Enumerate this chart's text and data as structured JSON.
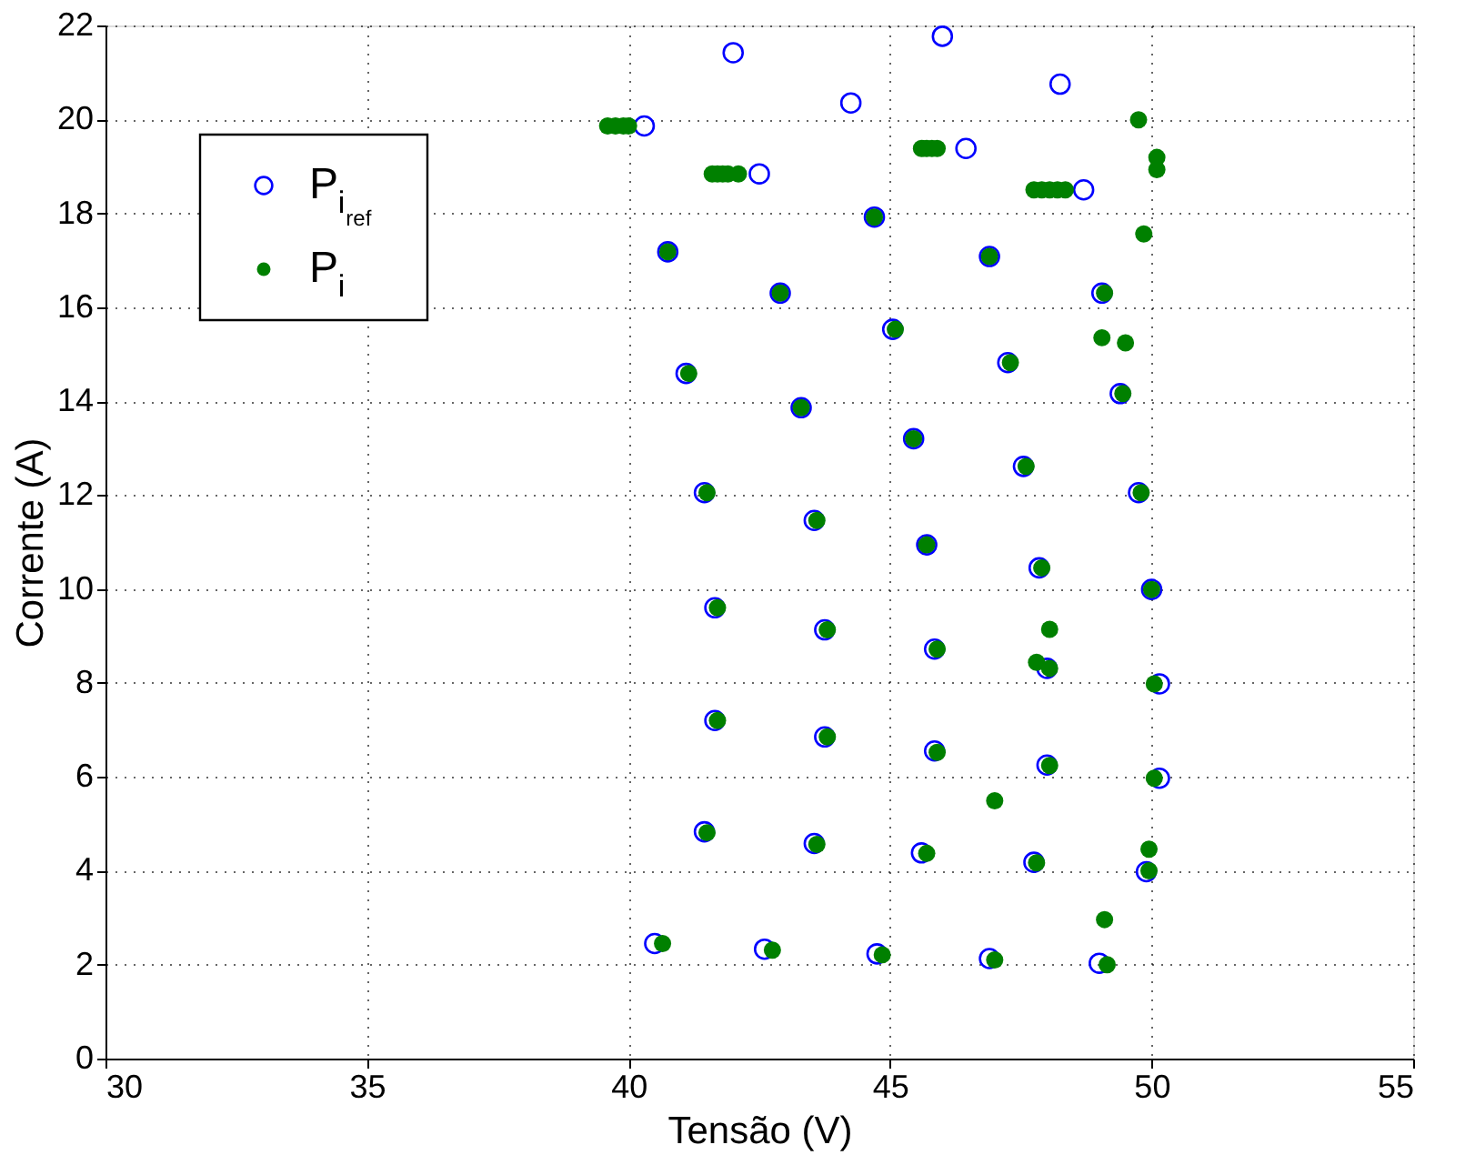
{
  "chart_data": {
    "type": "scatter",
    "xlabel": "Tensão (V)",
    "ylabel": "Corrente (A)",
    "xlim": [
      30,
      55
    ],
    "xticks": [
      30,
      35,
      40,
      45,
      50,
      55
    ],
    "ylim": [
      0,
      22
    ],
    "yticks": [
      0,
      2,
      4,
      6,
      8,
      10,
      12,
      14,
      16,
      18,
      20,
      22
    ],
    "grid": true,
    "legend": "top left",
    "series": [
      {
        "name": "P$_{i}$$_{ref}$",
        "color": "#0000ff",
        "marker": "circle",
        "x": [
          40.5,
          42.6,
          44.75,
          46.9,
          49.0,
          41.45,
          43.55,
          45.6,
          47.75,
          49.9,
          41.65,
          43.75,
          45.85,
          48.0,
          50.15,
          41.65,
          43.75,
          45.85,
          48.0,
          50.15,
          41.45,
          43.55,
          45.7,
          47.85,
          50.0,
          41.1,
          43.3,
          45.45,
          47.55,
          49.75,
          40.75,
          42.9,
          45.05,
          47.25,
          49.4,
          40.3,
          42.5,
          44.7,
          46.9,
          49.05,
          42.0,
          44.25,
          46.45,
          48.7,
          46.0,
          48.25
        ],
        "values": [
          2.45,
          2.33,
          2.23,
          2.13,
          2.03,
          4.83,
          4.58,
          4.38,
          4.18,
          3.98,
          7.2,
          6.85,
          6.55,
          6.25,
          5.97,
          9.6,
          9.13,
          8.72,
          8.31,
          7.98,
          12.05,
          11.46,
          10.94,
          10.45,
          9.99,
          14.59,
          13.86,
          13.2,
          12.61,
          12.05,
          17.18,
          16.3,
          15.53,
          14.82,
          14.16,
          19.86,
          18.84,
          17.92,
          17.08,
          16.3,
          21.42,
          20.35,
          19.38,
          18.5,
          21.77,
          20.75
        ]
      },
      {
        "name": "P$_{i}$",
        "color": "#008000",
        "marker": "circle",
        "x": [
          40.65,
          42.75,
          44.85,
          47.0,
          49.15,
          41.5,
          43.6,
          45.7,
          47.8,
          49.95,
          41.7,
          43.8,
          45.9,
          48.05,
          50.05,
          41.7,
          43.8,
          45.9,
          48.05,
          50.05,
          41.5,
          43.6,
          45.7,
          47.9,
          50.0,
          41.15,
          43.3,
          45.45,
          47.6,
          49.8,
          40.75,
          42.9,
          45.1,
          47.3,
          49.45,
          39.6,
          39.75,
          39.9,
          40.0,
          41.6,
          41.7,
          41.8,
          41.9,
          42.1,
          44.7,
          46.9,
          49.1,
          45.6,
          45.7,
          45.8,
          45.9,
          47.75,
          47.9,
          48.05,
          48.2,
          48.35,
          49.75,
          50.1,
          50.1,
          49.85,
          49.05,
          49.5,
          48.05,
          47.8,
          47.0,
          49.95,
          49.1
        ],
        "values": [
          2.45,
          2.31,
          2.21,
          2.1,
          2.0,
          4.81,
          4.56,
          4.37,
          4.17,
          4.0,
          7.2,
          6.85,
          6.52,
          6.24,
          5.97,
          9.6,
          9.13,
          8.72,
          8.31,
          7.98,
          12.05,
          11.46,
          10.94,
          10.45,
          9.99,
          14.59,
          13.86,
          13.2,
          12.61,
          12.05,
          17.18,
          16.3,
          15.53,
          14.82,
          14.16,
          19.86,
          19.86,
          19.86,
          19.86,
          18.84,
          18.84,
          18.84,
          18.84,
          18.84,
          17.92,
          17.08,
          16.3,
          19.38,
          19.38,
          19.38,
          19.38,
          18.5,
          18.5,
          18.5,
          18.5,
          18.5,
          19.99,
          19.19,
          18.93,
          17.56,
          15.35,
          15.24,
          9.14,
          8.44,
          5.49,
          4.46,
          2.96
        ]
      }
    ]
  }
}
